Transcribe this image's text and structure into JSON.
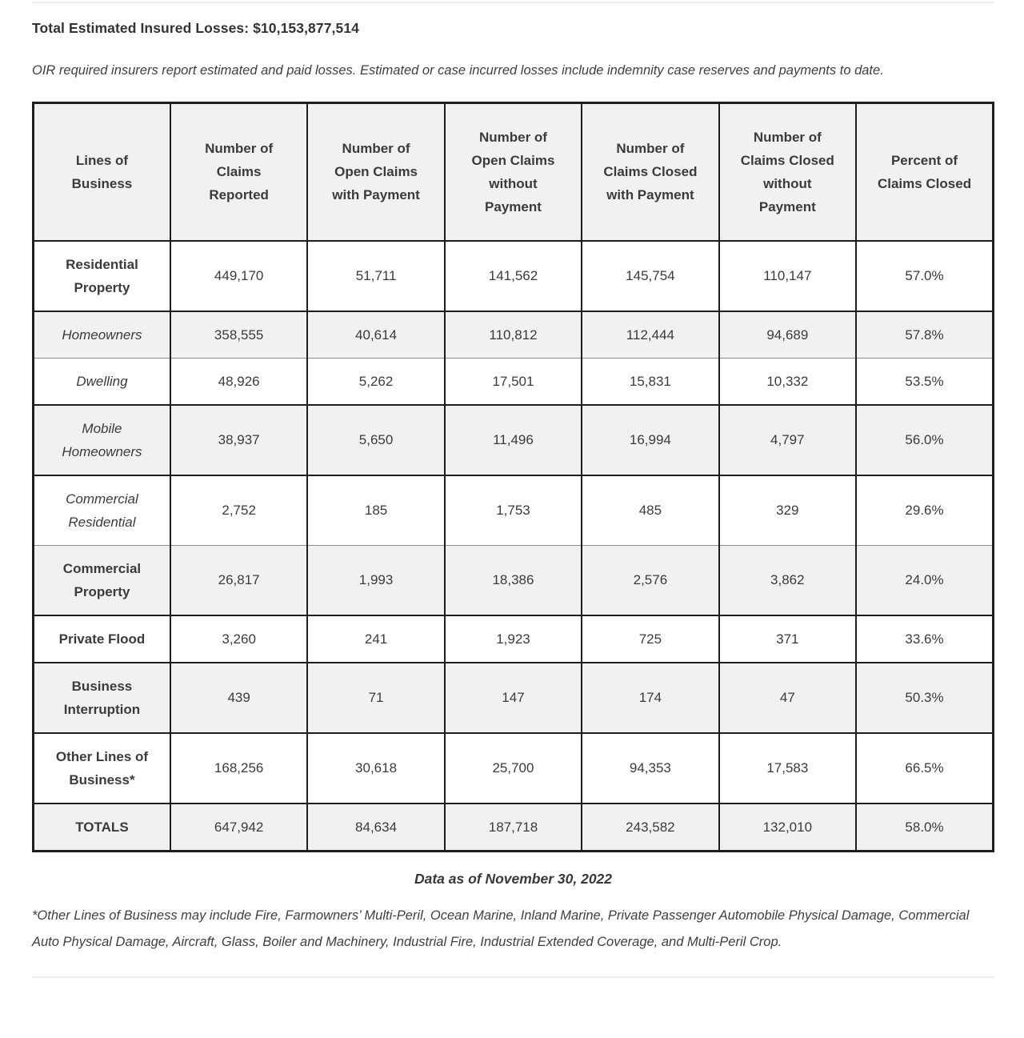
{
  "header": {
    "title": "Total Estimated Insured Losses: $10,153,877,514",
    "intro": "OIR required insurers report estimated and paid losses. Estimated or case incurred losses include indemnity case reserves and payments to date."
  },
  "table": {
    "headers": [
      "Lines of Business",
      "Number of Claims Reported",
      "Number of Open Claims with Payment",
      "Number of Open Claims without Payment",
      "Number of Claims Closed with Payment",
      "Number of Claims Closed without Payment",
      "Percent of Claims Closed"
    ],
    "rows": [
      {
        "label": "Residential Property",
        "style": "bold",
        "values": [
          "449,170",
          "51,711",
          "141,562",
          "145,754",
          "110,147",
          "57.0%"
        ]
      },
      {
        "label": "Homeowners",
        "style": "italic",
        "values": [
          "358,555",
          "40,614",
          "110,812",
          "112,444",
          "94,689",
          "57.8%"
        ]
      },
      {
        "label": "Dwelling",
        "style": "italic",
        "values": [
          "48,926",
          "5,262",
          "17,501",
          "15,831",
          "10,332",
          "53.5%"
        ]
      },
      {
        "label": "Mobile Homeowners",
        "style": "italic",
        "values": [
          "38,937",
          "5,650",
          "11,496",
          "16,994",
          "4,797",
          "56.0%"
        ]
      },
      {
        "label": "Commercial Residential",
        "style": "italic",
        "values": [
          "2,752",
          "185",
          "1,753",
          "485",
          "329",
          "29.6%"
        ]
      },
      {
        "label": "Commercial Property",
        "style": "bold",
        "values": [
          "26,817",
          "1,993",
          "18,386",
          "2,576",
          "3,862",
          "24.0%"
        ]
      },
      {
        "label": "Private Flood",
        "style": "bold",
        "values": [
          "3,260",
          "241",
          "1,923",
          "725",
          "371",
          "33.6%"
        ]
      },
      {
        "label": "Business Interruption",
        "style": "bold",
        "values": [
          "439",
          "71",
          "147",
          "174",
          "47",
          "50.3%"
        ]
      },
      {
        "label": "Other Lines of Business*",
        "style": "bold",
        "values": [
          "168,256",
          "30,618",
          "25,700",
          "94,353",
          "17,583",
          "66.5%"
        ]
      },
      {
        "label": "TOTALS",
        "style": "bold",
        "values": [
          "647,942",
          "84,634",
          "187,718",
          "243,582",
          "132,010",
          "58.0%"
        ]
      }
    ]
  },
  "footer": {
    "data_as_of": "Data as of November 30, 2022",
    "footnote": "*Other Lines of Business may include Fire, Farmowners’ Multi-Peril, Ocean Marine, Inland Marine, Private Passenger Automobile Physical Damage, Commercial Auto Physical Damage, Aircraft, Glass, Boiler and Machinery, Industrial Fire, Industrial Extended Coverage, and Multi-Peril Crop."
  },
  "colors": {
    "header_row_bg": "#f1f1f1",
    "zebra_row_bg": "#f1f1f1",
    "border_dark": "#1e1e1e",
    "border_light": "#8c8c8c",
    "text": "#3b3b3b",
    "divider": "#ececec"
  }
}
